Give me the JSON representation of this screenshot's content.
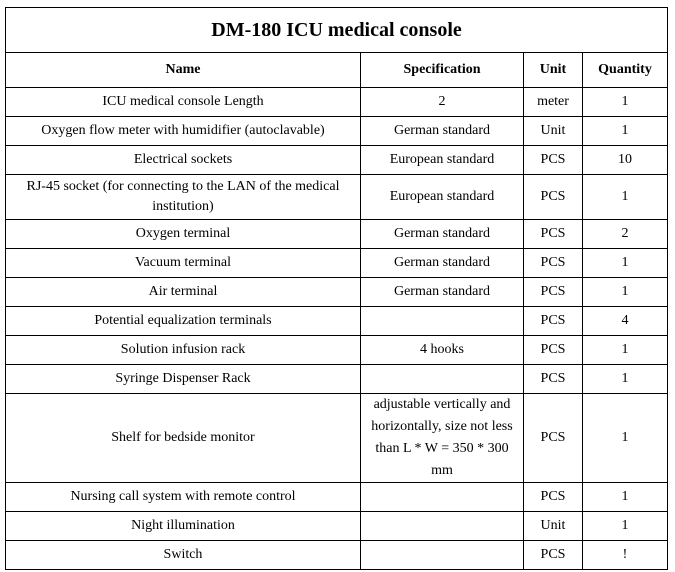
{
  "title": "DM-180 ICU medical console",
  "columns": [
    "Name",
    "Specification",
    "Unit",
    "Quantity"
  ],
  "rows": [
    {
      "name": "ICU medical console Length",
      "spec": "2",
      "unit": "meter",
      "qty": "1"
    },
    {
      "name": "Oxygen flow meter with humidifier (autoclavable)",
      "spec": "German standard",
      "unit": "Unit",
      "qty": "1"
    },
    {
      "name": "Electrical sockets",
      "spec": "European standard",
      "unit": "PCS",
      "qty": "10"
    },
    {
      "name": "RJ-45 socket (for connecting to the LAN of the medical institution)",
      "spec": "European standard",
      "unit": "PCS",
      "qty": "1"
    },
    {
      "name": "Oxygen terminal",
      "spec": "German standard",
      "unit": "PCS",
      "qty": "2"
    },
    {
      "name": "Vacuum terminal",
      "spec": "German standard",
      "unit": "PCS",
      "qty": "1"
    },
    {
      "name": "Air terminal",
      "spec": "German standard",
      "unit": "PCS",
      "qty": "1"
    },
    {
      "name": "Potential equalization terminals",
      "spec": "",
      "unit": "PCS",
      "qty": "4"
    },
    {
      "name": "Solution infusion rack",
      "spec": "4 hooks",
      "unit": "PCS",
      "qty": "1"
    },
    {
      "name": "Syringe Dispenser Rack",
      "spec": "",
      "unit": "PCS",
      "qty": "1"
    },
    {
      "name": "Shelf for bedside monitor",
      "spec": "adjustable vertically and horizontally, size not less than L * W = 350 * 300 mm",
      "unit": "PCS",
      "qty": "1"
    },
    {
      "name": "Nursing call system with remote control",
      "spec": "",
      "unit": "PCS",
      "qty": "1"
    },
    {
      "name": "Night illumination",
      "spec": "",
      "unit": "Unit",
      "qty": "1"
    },
    {
      "name": "Switch",
      "spec": "",
      "unit": "PCS",
      "qty": "!"
    }
  ]
}
